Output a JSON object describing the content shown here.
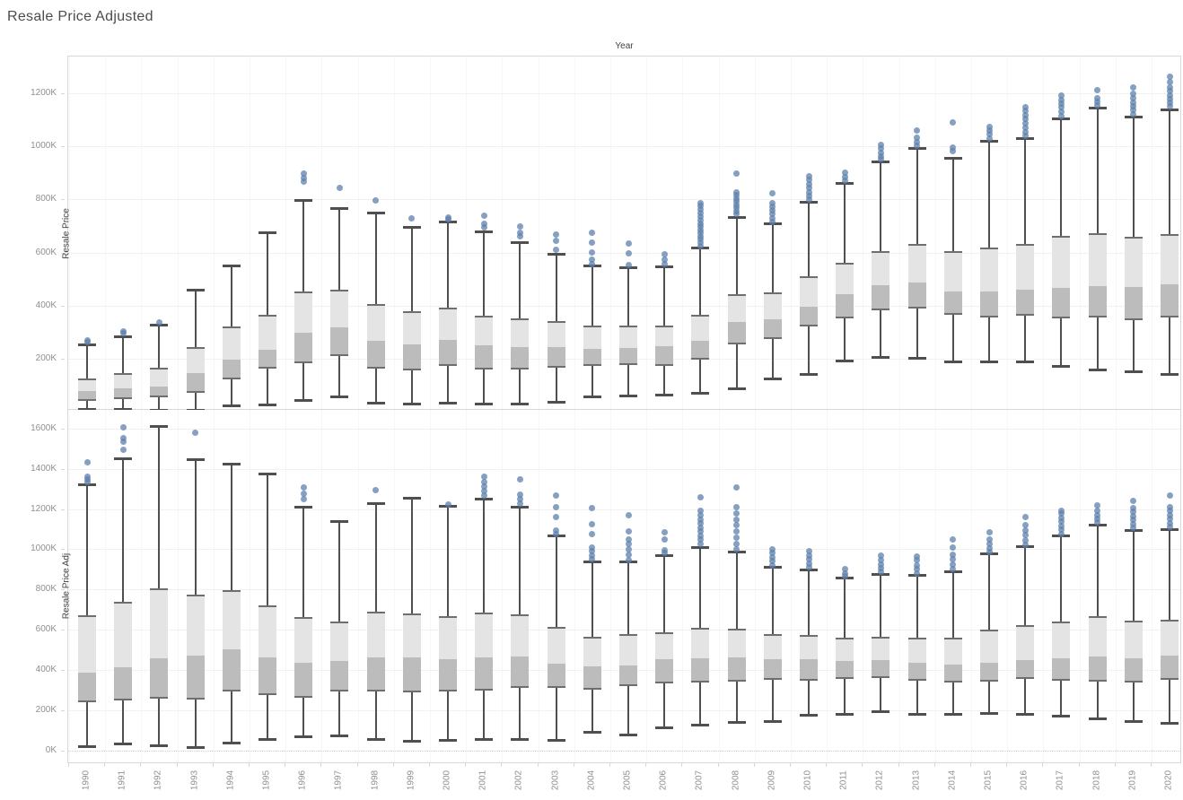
{
  "title": "Resale Price Adjusted",
  "x_axis": {
    "title": "Year",
    "categories": [
      1990,
      1991,
      1992,
      1993,
      1994,
      1995,
      1996,
      1997,
      1998,
      1999,
      2000,
      2001,
      2002,
      2003,
      2004,
      2005,
      2006,
      2007,
      2008,
      2009,
      2010,
      2011,
      2012,
      2013,
      2014,
      2015,
      2016,
      2017,
      2018,
      2019,
      2020
    ]
  },
  "colors": {
    "box_fill_upper": "#e4e4e4",
    "box_fill_lower": "#bcbcbc",
    "box_edge": "#6e6e6e",
    "whisker": "#4f4f4f",
    "outlier": "#5c80ac",
    "gridline": "#f1f1f1",
    "axis_text": "#8f8f8f",
    "title_text": "#4c4c4c"
  },
  "chart_data": [
    {
      "type": "box",
      "title": "Resale Price",
      "ylabel": "Resale Price",
      "units": "K",
      "ylim": [
        0,
        1340
      ],
      "grid": "horizontal",
      "yticks": [
        {
          "v": 200,
          "label": "200K"
        },
        {
          "v": 400,
          "label": "400K"
        },
        {
          "v": 600,
          "label": "600K"
        },
        {
          "v": 800,
          "label": "800K"
        },
        {
          "v": 1000,
          "label": "1000K"
        },
        {
          "v": 1200,
          "label": "1200K"
        }
      ],
      "boxes": [
        {
          "year": 1990,
          "low": 12,
          "q1": 44,
          "median": 78,
          "q3": 128,
          "high": 254,
          "outliers": [
            262,
            269
          ]
        },
        {
          "year": 1991,
          "low": 12,
          "q1": 50,
          "median": 89,
          "q3": 147,
          "high": 286,
          "outliers": [
            296,
            303
          ]
        },
        {
          "year": 1992,
          "low": 10,
          "q1": 56,
          "median": 95,
          "q3": 168,
          "high": 330,
          "outliers": [
            337
          ]
        },
        {
          "year": 1993,
          "low": 10,
          "q1": 74,
          "median": 147,
          "q3": 246,
          "high": 462,
          "outliers": []
        },
        {
          "year": 1994,
          "low": 25,
          "q1": 122,
          "median": 196,
          "q3": 322,
          "high": 552,
          "outliers": []
        },
        {
          "year": 1995,
          "low": 29,
          "q1": 164,
          "median": 235,
          "q3": 367,
          "high": 676,
          "outliers": []
        },
        {
          "year": 1996,
          "low": 47,
          "q1": 185,
          "median": 298,
          "q3": 455,
          "high": 799,
          "outliers": [
            868,
            882,
            897
          ]
        },
        {
          "year": 1997,
          "low": 61,
          "q1": 212,
          "median": 319,
          "q3": 462,
          "high": 766,
          "outliers": [
            843
          ]
        },
        {
          "year": 1998,
          "low": 35,
          "q1": 164,
          "median": 269,
          "q3": 407,
          "high": 750,
          "outliers": [
            795
          ]
        },
        {
          "year": 1999,
          "low": 33,
          "q1": 158,
          "median": 254,
          "q3": 378,
          "high": 696,
          "outliers": [
            730
          ]
        },
        {
          "year": 2000,
          "low": 35,
          "q1": 173,
          "median": 272,
          "q3": 392,
          "high": 716,
          "outliers": [
            724,
            732
          ]
        },
        {
          "year": 2001,
          "low": 33,
          "q1": 162,
          "median": 250,
          "q3": 364,
          "high": 679,
          "outliers": [
            694,
            708,
            740
          ]
        },
        {
          "year": 2002,
          "low": 33,
          "q1": 160,
          "median": 246,
          "q3": 353,
          "high": 638,
          "outliers": [
            660,
            676,
            700
          ]
        },
        {
          "year": 2003,
          "low": 38,
          "q1": 166,
          "median": 245,
          "q3": 344,
          "high": 595,
          "outliers": [
            612,
            644,
            667
          ]
        },
        {
          "year": 2004,
          "low": 61,
          "q1": 173,
          "median": 238,
          "q3": 327,
          "high": 550,
          "outliers": [
            558,
            572,
            602,
            638,
            674
          ]
        },
        {
          "year": 2005,
          "low": 63,
          "q1": 176,
          "median": 240,
          "q3": 327,
          "high": 544,
          "outliers": [
            553,
            598,
            634
          ]
        },
        {
          "year": 2006,
          "low": 66,
          "q1": 173,
          "median": 248,
          "q3": 327,
          "high": 547,
          "outliers": [
            558,
            574,
            594
          ]
        },
        {
          "year": 2007,
          "low": 74,
          "q1": 196,
          "median": 269,
          "q3": 367,
          "high": 619,
          "outliers": [
            625,
            638,
            650,
            662,
            674,
            686,
            698,
            710,
            722,
            734,
            748,
            762,
            776,
            786
          ]
        },
        {
          "year": 2008,
          "low": 91,
          "q1": 254,
          "median": 338,
          "q3": 445,
          "high": 735,
          "outliers": [
            744,
            756,
            768,
            780,
            792,
            804,
            816,
            828,
            898
          ]
        },
        {
          "year": 2009,
          "low": 128,
          "q1": 274,
          "median": 351,
          "q3": 449,
          "high": 709,
          "outliers": [
            716,
            730,
            744,
            758,
            772,
            786,
            822
          ]
        },
        {
          "year": 2010,
          "low": 145,
          "q1": 321,
          "median": 398,
          "q3": 510,
          "high": 792,
          "outliers": [
            800,
            814,
            828,
            842,
            856,
            872,
            888
          ]
        },
        {
          "year": 2011,
          "low": 193,
          "q1": 353,
          "median": 443,
          "q3": 561,
          "high": 861,
          "outliers": [
            869,
            884,
            900
          ]
        },
        {
          "year": 2012,
          "low": 209,
          "q1": 383,
          "median": 479,
          "q3": 606,
          "high": 943,
          "outliers": [
            950,
            963,
            976,
            990,
            1005
          ]
        },
        {
          "year": 2013,
          "low": 205,
          "q1": 389,
          "median": 488,
          "q3": 634,
          "high": 994,
          "outliers": [
            1001,
            1016,
            1032,
            1060
          ]
        },
        {
          "year": 2014,
          "low": 192,
          "q1": 367,
          "median": 454,
          "q3": 606,
          "high": 957,
          "outliers": [
            983,
            995,
            1089
          ]
        },
        {
          "year": 2015,
          "low": 192,
          "q1": 355,
          "median": 454,
          "q3": 620,
          "high": 1019,
          "outliers": [
            1028,
            1044,
            1058,
            1072
          ]
        },
        {
          "year": 2016,
          "low": 190,
          "q1": 364,
          "median": 462,
          "q3": 632,
          "high": 1030,
          "outliers": [
            1038,
            1054,
            1070,
            1086,
            1102,
            1118,
            1134,
            1148
          ]
        },
        {
          "year": 2017,
          "low": 173,
          "q1": 353,
          "median": 468,
          "q3": 662,
          "high": 1106,
          "outliers": [
            1114,
            1130,
            1146,
            1160,
            1175,
            1190
          ]
        },
        {
          "year": 2018,
          "low": 162,
          "q1": 355,
          "median": 473,
          "q3": 674,
          "high": 1146,
          "outliers": [
            1152,
            1166,
            1180,
            1210
          ]
        },
        {
          "year": 2019,
          "low": 153,
          "q1": 347,
          "median": 471,
          "q3": 659,
          "high": 1112,
          "outliers": [
            1120,
            1135,
            1150,
            1165,
            1180,
            1196,
            1220
          ]
        },
        {
          "year": 2020,
          "low": 142,
          "q1": 356,
          "median": 480,
          "q3": 670,
          "high": 1140,
          "outliers": [
            1150,
            1164,
            1178,
            1192,
            1206,
            1222,
            1240,
            1262
          ]
        }
      ]
    },
    {
      "type": "box",
      "title": "Resale Price Adj",
      "ylabel": "Resale Price Adj",
      "units": "K",
      "ylim": [
        0,
        1680
      ],
      "grid": "horizontal",
      "yticks": [
        {
          "v": 0,
          "label": "0K"
        },
        {
          "v": 200,
          "label": "200K"
        },
        {
          "v": 400,
          "label": "400K"
        },
        {
          "v": 600,
          "label": "600K"
        },
        {
          "v": 800,
          "label": "800K"
        },
        {
          "v": 1000,
          "label": "1000K"
        },
        {
          "v": 1200,
          "label": "1200K"
        },
        {
          "v": 1400,
          "label": "1400K"
        },
        {
          "v": 1600,
          "label": "1600K"
        }
      ],
      "boxes": [
        {
          "year": 1990,
          "low": 22,
          "q1": 240,
          "median": 388,
          "q3": 671,
          "high": 1321,
          "outliers": [
            1332,
            1346,
            1360,
            1432
          ]
        },
        {
          "year": 1991,
          "low": 35,
          "q1": 250,
          "median": 414,
          "q3": 738,
          "high": 1453,
          "outliers": [
            1495,
            1532,
            1554,
            1606
          ]
        },
        {
          "year": 1992,
          "low": 28,
          "q1": 258,
          "median": 458,
          "q3": 804,
          "high": 1610,
          "outliers": []
        },
        {
          "year": 1993,
          "low": 17,
          "q1": 255,
          "median": 470,
          "q3": 775,
          "high": 1446,
          "outliers": [
            1579
          ]
        },
        {
          "year": 1994,
          "low": 40,
          "q1": 292,
          "median": 503,
          "q3": 797,
          "high": 1423,
          "outliers": []
        },
        {
          "year": 1995,
          "low": 59,
          "q1": 277,
          "median": 463,
          "q3": 723,
          "high": 1376,
          "outliers": []
        },
        {
          "year": 1996,
          "low": 70,
          "q1": 262,
          "median": 436,
          "q3": 663,
          "high": 1212,
          "outliers": [
            1250,
            1275,
            1305
          ]
        },
        {
          "year": 1997,
          "low": 77,
          "q1": 295,
          "median": 444,
          "q3": 641,
          "high": 1141,
          "outliers": []
        },
        {
          "year": 1998,
          "low": 59,
          "q1": 295,
          "median": 463,
          "q3": 690,
          "high": 1230,
          "outliers": [
            1294
          ]
        },
        {
          "year": 1999,
          "low": 50,
          "q1": 288,
          "median": 463,
          "q3": 681,
          "high": 1257,
          "outliers": []
        },
        {
          "year": 2000,
          "low": 54,
          "q1": 292,
          "median": 453,
          "q3": 666,
          "high": 1216,
          "outliers": [
            1222
          ]
        },
        {
          "year": 2001,
          "low": 57,
          "q1": 299,
          "median": 463,
          "q3": 686,
          "high": 1253,
          "outliers": [
            1268,
            1288,
            1310,
            1332,
            1361
          ]
        },
        {
          "year": 2002,
          "low": 59,
          "q1": 310,
          "median": 466,
          "q3": 675,
          "high": 1212,
          "outliers": [
            1228,
            1250,
            1272,
            1346
          ]
        },
        {
          "year": 2003,
          "low": 54,
          "q1": 310,
          "median": 433,
          "q3": 616,
          "high": 1067,
          "outliers": [
            1076,
            1092,
            1161,
            1208,
            1268
          ]
        },
        {
          "year": 2004,
          "low": 92,
          "q1": 304,
          "median": 418,
          "q3": 567,
          "high": 941,
          "outliers": [
            950,
            970,
            990,
            1010,
            1074,
            1123,
            1205
          ]
        },
        {
          "year": 2005,
          "low": 81,
          "q1": 322,
          "median": 423,
          "q3": 577,
          "high": 938,
          "outliers": [
            948,
            974,
            1000,
            1026,
            1050,
            1089,
            1168
          ]
        },
        {
          "year": 2006,
          "low": 114,
          "q1": 332,
          "median": 455,
          "q3": 589,
          "high": 971,
          "outliers": [
            980,
            996,
            1049,
            1086
          ]
        },
        {
          "year": 2007,
          "low": 129,
          "q1": 339,
          "median": 458,
          "q3": 611,
          "high": 1012,
          "outliers": [
            1028,
            1048,
            1068,
            1088,
            1108,
            1128,
            1148,
            1168,
            1190,
            1257
          ]
        },
        {
          "year": 2008,
          "low": 141,
          "q1": 344,
          "median": 461,
          "q3": 607,
          "high": 987,
          "outliers": [
            998,
            1028,
            1058,
            1088,
            1118,
            1148,
            1178,
            1210,
            1309
          ]
        },
        {
          "year": 2009,
          "low": 147,
          "q1": 351,
          "median": 453,
          "q3": 577,
          "high": 911,
          "outliers": [
            920,
            940,
            960,
            980,
            1000
          ]
        },
        {
          "year": 2010,
          "low": 176,
          "q1": 348,
          "median": 453,
          "q3": 574,
          "high": 901,
          "outliers": [
            910,
            930,
            950,
            970,
            990
          ]
        },
        {
          "year": 2011,
          "low": 181,
          "q1": 355,
          "median": 444,
          "q3": 559,
          "high": 859,
          "outliers": [
            866,
            880,
            903
          ]
        },
        {
          "year": 2012,
          "low": 196,
          "q1": 362,
          "median": 448,
          "q3": 567,
          "high": 878,
          "outliers": [
            886,
            906,
            926,
            946,
            967
          ]
        },
        {
          "year": 2013,
          "low": 184,
          "q1": 347,
          "median": 436,
          "q3": 562,
          "high": 874,
          "outliers": [
            881,
            900,
            921,
            944,
            965
          ]
        },
        {
          "year": 2014,
          "low": 184,
          "q1": 339,
          "median": 426,
          "q3": 562,
          "high": 890,
          "outliers": [
            900,
            925,
            950,
            975,
            1010,
            1049
          ]
        },
        {
          "year": 2015,
          "low": 188,
          "q1": 344,
          "median": 436,
          "q3": 600,
          "high": 978,
          "outliers": [
            986,
            1006,
            1026,
            1049,
            1086
          ]
        },
        {
          "year": 2016,
          "low": 184,
          "q1": 355,
          "median": 451,
          "q3": 622,
          "high": 1015,
          "outliers": [
            1022,
            1046,
            1070,
            1094,
            1120,
            1161
          ]
        },
        {
          "year": 2017,
          "low": 173,
          "q1": 347,
          "median": 458,
          "q3": 641,
          "high": 1067,
          "outliers": [
            1076,
            1096,
            1116,
            1136,
            1156,
            1176,
            1190
          ]
        },
        {
          "year": 2018,
          "low": 161,
          "q1": 344,
          "median": 466,
          "q3": 668,
          "high": 1123,
          "outliers": [
            1131,
            1151,
            1171,
            1191,
            1220
          ]
        },
        {
          "year": 2019,
          "low": 147,
          "q1": 339,
          "median": 458,
          "q3": 644,
          "high": 1097,
          "outliers": [
            1106,
            1126,
            1146,
            1166,
            1186,
            1206,
            1240
          ]
        },
        {
          "year": 2020,
          "low": 136,
          "q1": 351,
          "median": 470,
          "q3": 648,
          "high": 1101,
          "outliers": [
            1110,
            1130,
            1150,
            1170,
            1190,
            1210,
            1265
          ]
        }
      ]
    }
  ]
}
